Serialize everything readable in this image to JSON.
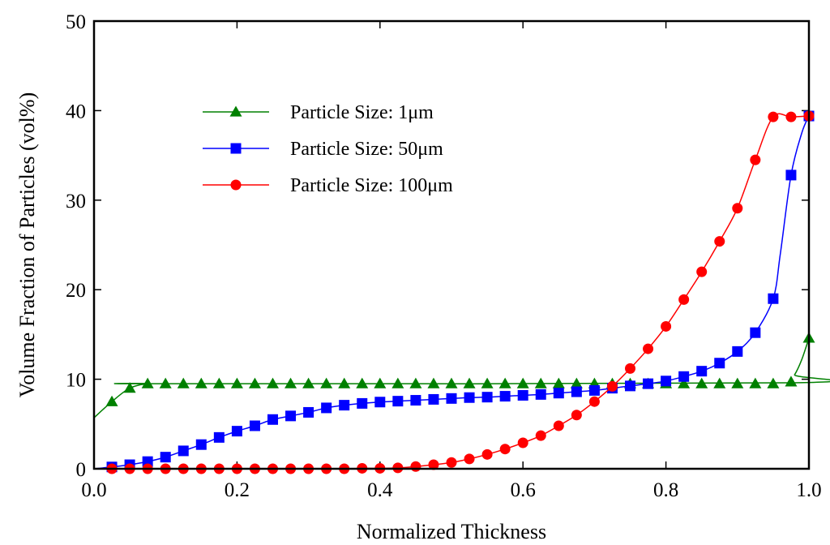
{
  "chart_data": {
    "type": "line",
    "title": "",
    "xlabel": "Normalized Thickness",
    "ylabel": "Volume Fraction of Particles (vol%)",
    "xlim": [
      0.0,
      1.0
    ],
    "ylim": [
      0,
      50
    ],
    "xticks": [
      0.0,
      0.2,
      0.4,
      0.6,
      0.8,
      1.0
    ],
    "xtick_labels": [
      "0.0",
      "0.2",
      "0.4",
      "0.6",
      "0.8",
      "1.0"
    ],
    "yticks": [
      0,
      10,
      20,
      30,
      40,
      50
    ],
    "ytick_labels": [
      "0",
      "10",
      "20",
      "30",
      "40",
      "50"
    ],
    "grid": false,
    "legend_position": "upper-left",
    "series": [
      {
        "name": "Particle Size: 1μm",
        "color": "#008000",
        "marker": "triangle",
        "curve": [
          [
            0.0,
            5.7
          ],
          [
            0.025,
            7.5
          ],
          [
            0.05,
            9.0
          ],
          [
            0.075,
            9.5
          ],
          [
            0.1,
            9.5
          ],
          [
            0.97,
            9.6
          ],
          [
            0.98,
            10.5
          ],
          [
            0.99,
            12.2
          ],
          [
            1.0,
            14.6
          ]
        ],
        "x": [
          0.025,
          0.05,
          0.075,
          0.1,
          0.125,
          0.15,
          0.175,
          0.2,
          0.225,
          0.25,
          0.275,
          0.3,
          0.325,
          0.35,
          0.375,
          0.4,
          0.425,
          0.45,
          0.475,
          0.5,
          0.525,
          0.55,
          0.575,
          0.6,
          0.625,
          0.65,
          0.675,
          0.7,
          0.725,
          0.75,
          0.775,
          0.8,
          0.825,
          0.85,
          0.875,
          0.9,
          0.925,
          0.95,
          0.975,
          1.0
        ],
        "y": [
          7.5,
          9.0,
          9.5,
          9.5,
          9.5,
          9.5,
          9.5,
          9.5,
          9.5,
          9.5,
          9.5,
          9.5,
          9.5,
          9.5,
          9.5,
          9.5,
          9.5,
          9.5,
          9.5,
          9.5,
          9.5,
          9.5,
          9.5,
          9.5,
          9.5,
          9.5,
          9.5,
          9.5,
          9.5,
          9.5,
          9.5,
          9.5,
          9.5,
          9.5,
          9.5,
          9.5,
          9.5,
          9.5,
          9.7,
          14.6
        ]
      },
      {
        "name": "Particle Size: 50μm",
        "color": "#0000ff",
        "marker": "square",
        "curve": [
          [
            0.0,
            0.0
          ],
          [
            0.025,
            0.2
          ],
          [
            0.05,
            0.45
          ],
          [
            0.075,
            0.8
          ],
          [
            0.1,
            1.3
          ],
          [
            0.125,
            2.0
          ],
          [
            0.15,
            2.7
          ],
          [
            0.175,
            3.5
          ],
          [
            0.2,
            4.2
          ],
          [
            0.225,
            4.8
          ],
          [
            0.25,
            5.5
          ],
          [
            0.275,
            5.9
          ],
          [
            0.3,
            6.3
          ],
          [
            0.325,
            6.8
          ],
          [
            0.35,
            7.1
          ],
          [
            0.375,
            7.3
          ],
          [
            0.4,
            7.45
          ],
          [
            0.425,
            7.55
          ],
          [
            0.45,
            7.65
          ],
          [
            0.475,
            7.75
          ],
          [
            0.5,
            7.85
          ],
          [
            0.525,
            7.95
          ],
          [
            0.55,
            8.0
          ],
          [
            0.575,
            8.1
          ],
          [
            0.6,
            8.2
          ],
          [
            0.625,
            8.3
          ],
          [
            0.65,
            8.45
          ],
          [
            0.675,
            8.6
          ],
          [
            0.7,
            8.75
          ],
          [
            0.725,
            9.0
          ],
          [
            0.75,
            9.25
          ],
          [
            0.775,
            9.5
          ],
          [
            0.8,
            9.8
          ],
          [
            0.825,
            10.3
          ],
          [
            0.85,
            10.9
          ],
          [
            0.875,
            11.8
          ],
          [
            0.9,
            13.1
          ],
          [
            0.925,
            15.2
          ],
          [
            0.95,
            19.0
          ],
          [
            0.96,
            24.0
          ],
          [
            0.975,
            32.8
          ],
          [
            0.99,
            37.5
          ],
          [
            1.0,
            39.4
          ]
        ],
        "x": [
          0.025,
          0.05,
          0.075,
          0.1,
          0.125,
          0.15,
          0.175,
          0.2,
          0.225,
          0.25,
          0.275,
          0.3,
          0.325,
          0.35,
          0.375,
          0.4,
          0.425,
          0.45,
          0.475,
          0.5,
          0.525,
          0.55,
          0.575,
          0.6,
          0.625,
          0.65,
          0.675,
          0.7,
          0.725,
          0.75,
          0.775,
          0.8,
          0.825,
          0.85,
          0.875,
          0.9,
          0.925,
          0.95,
          0.975,
          1.0
        ],
        "y": [
          0.2,
          0.45,
          0.8,
          1.3,
          2.0,
          2.7,
          3.5,
          4.2,
          4.8,
          5.5,
          5.9,
          6.3,
          6.8,
          7.1,
          7.3,
          7.45,
          7.55,
          7.65,
          7.75,
          7.85,
          7.95,
          8.0,
          8.1,
          8.2,
          8.3,
          8.45,
          8.6,
          8.75,
          9.0,
          9.25,
          9.5,
          9.8,
          10.3,
          10.9,
          11.8,
          13.1,
          15.2,
          19.0,
          32.8,
          39.4
        ]
      },
      {
        "name": "Particle Size: 100μm",
        "color": "#ff0000",
        "marker": "circle",
        "curve": [
          [
            0.0,
            0.0
          ],
          [
            0.025,
            0.0
          ],
          [
            0.05,
            0.0
          ],
          [
            0.075,
            0.0
          ],
          [
            0.1,
            0.0
          ],
          [
            0.125,
            0.0
          ],
          [
            0.15,
            0.0
          ],
          [
            0.175,
            0.0
          ],
          [
            0.2,
            0.0
          ],
          [
            0.225,
            0.0
          ],
          [
            0.25,
            0.0
          ],
          [
            0.275,
            0.0
          ],
          [
            0.3,
            0.0
          ],
          [
            0.325,
            0.0
          ],
          [
            0.35,
            0.0
          ],
          [
            0.375,
            0.05
          ],
          [
            0.4,
            0.05
          ],
          [
            0.425,
            0.1
          ],
          [
            0.45,
            0.25
          ],
          [
            0.475,
            0.45
          ],
          [
            0.5,
            0.7
          ],
          [
            0.525,
            1.1
          ],
          [
            0.55,
            1.6
          ],
          [
            0.575,
            2.2
          ],
          [
            0.6,
            2.9
          ],
          [
            0.625,
            3.7
          ],
          [
            0.65,
            4.8
          ],
          [
            0.675,
            6.0
          ],
          [
            0.7,
            7.5
          ],
          [
            0.725,
            9.2
          ],
          [
            0.75,
            11.2
          ],
          [
            0.775,
            13.4
          ],
          [
            0.8,
            15.9
          ],
          [
            0.825,
            18.9
          ],
          [
            0.85,
            22.0
          ],
          [
            0.875,
            25.4
          ],
          [
            0.9,
            29.1
          ],
          [
            0.925,
            34.5
          ],
          [
            0.95,
            39.3
          ],
          [
            0.975,
            39.3
          ],
          [
            1.0,
            39.4
          ]
        ],
        "x": [
          0.025,
          0.05,
          0.075,
          0.1,
          0.125,
          0.15,
          0.175,
          0.2,
          0.225,
          0.25,
          0.275,
          0.3,
          0.325,
          0.35,
          0.375,
          0.4,
          0.425,
          0.45,
          0.475,
          0.5,
          0.525,
          0.55,
          0.575,
          0.6,
          0.625,
          0.65,
          0.675,
          0.7,
          0.725,
          0.75,
          0.775,
          0.8,
          0.825,
          0.85,
          0.875,
          0.9,
          0.925,
          0.95,
          0.975,
          1.0
        ],
        "y": [
          0.0,
          0.0,
          0.0,
          0.0,
          0.0,
          0.0,
          0.0,
          0.0,
          0.0,
          0.0,
          0.0,
          0.0,
          0.0,
          0.0,
          0.05,
          0.05,
          0.1,
          0.25,
          0.45,
          0.7,
          1.1,
          1.6,
          2.2,
          2.9,
          3.7,
          4.8,
          6.0,
          7.5,
          9.2,
          11.2,
          13.4,
          15.9,
          18.9,
          22.0,
          25.4,
          29.1,
          34.5,
          39.3,
          39.3,
          39.4
        ]
      }
    ]
  }
}
